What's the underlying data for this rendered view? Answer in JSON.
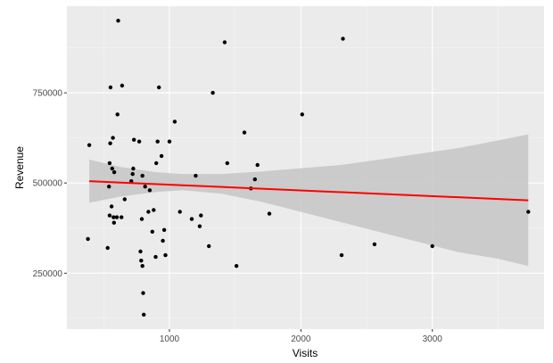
{
  "chart_data": {
    "type": "scatter",
    "xlabel": "Visits",
    "ylabel": "Revenue",
    "xlim": [
      220,
      3850
    ],
    "ylim": [
      95000,
      990000
    ],
    "x_ticks": [
      1000,
      2000,
      3000
    ],
    "x_tick_labels": [
      "1000",
      "2000",
      "3000"
    ],
    "y_ticks": [
      250000,
      500000,
      750000
    ],
    "y_tick_labels": [
      "250000",
      "500000",
      "750000"
    ],
    "grid": true,
    "background": "#ebebeb",
    "point_color": "#000000",
    "points": [
      [
        380,
        345000
      ],
      [
        390,
        605000
      ],
      [
        530,
        320000
      ],
      [
        540,
        490000
      ],
      [
        545,
        410000
      ],
      [
        545,
        555000
      ],
      [
        550,
        610000
      ],
      [
        552,
        765000
      ],
      [
        560,
        435000
      ],
      [
        565,
        540000
      ],
      [
        570,
        625000
      ],
      [
        575,
        405000
      ],
      [
        578,
        390000
      ],
      [
        580,
        530000
      ],
      [
        600,
        405000
      ],
      [
        605,
        690000
      ],
      [
        610,
        950000
      ],
      [
        635,
        405000
      ],
      [
        640,
        770000
      ],
      [
        660,
        455000
      ],
      [
        710,
        505000
      ],
      [
        720,
        525000
      ],
      [
        725,
        540000
      ],
      [
        730,
        620000
      ],
      [
        770,
        615000
      ],
      [
        780,
        310000
      ],
      [
        785,
        285000
      ],
      [
        790,
        400000
      ],
      [
        795,
        270000
      ],
      [
        795,
        520000
      ],
      [
        800,
        195000
      ],
      [
        805,
        135000
      ],
      [
        815,
        490000
      ],
      [
        840,
        420000
      ],
      [
        850,
        480000
      ],
      [
        870,
        365000
      ],
      [
        880,
        425000
      ],
      [
        895,
        295000
      ],
      [
        900,
        555000
      ],
      [
        910,
        615000
      ],
      [
        920,
        765000
      ],
      [
        940,
        575000
      ],
      [
        950,
        340000
      ],
      [
        960,
        370000
      ],
      [
        970,
        300000
      ],
      [
        1000,
        615000
      ],
      [
        1040,
        670000
      ],
      [
        1080,
        420000
      ],
      [
        1170,
        400000
      ],
      [
        1200,
        520000
      ],
      [
        1230,
        380000
      ],
      [
        1240,
        410000
      ],
      [
        1300,
        325000
      ],
      [
        1330,
        750000
      ],
      [
        1420,
        890000
      ],
      [
        1440,
        555000
      ],
      [
        1510,
        270000
      ],
      [
        1570,
        640000
      ],
      [
        1620,
        485000
      ],
      [
        1650,
        510000
      ],
      [
        1670,
        550000
      ],
      [
        1760,
        415000
      ],
      [
        2010,
        690000
      ],
      [
        2310,
        300000
      ],
      [
        2320,
        900000
      ],
      [
        2560,
        330000
      ],
      [
        3000,
        325000
      ],
      [
        3730,
        420000
      ]
    ],
    "trendline": {
      "method": "lm",
      "color": "#ff0000",
      "x": [
        390,
        3730
      ],
      "y": [
        505000,
        452000
      ],
      "band_color": "#c8c8c8",
      "band": {
        "x": [
          390,
          620,
          900,
          1100,
          1400,
          1700,
          2000,
          2300,
          2600,
          2900,
          3200,
          3500,
          3730
        ],
        "lower": [
          445000,
          462000,
          475000,
          480000,
          470000,
          448000,
          420000,
          392000,
          364000,
          336000,
          308000,
          290000,
          270000
        ],
        "upper": [
          565000,
          545000,
          530000,
          525000,
          525000,
          532000,
          541000,
          550000,
          565000,
          581000,
          597000,
          618000,
          635000
        ]
      }
    }
  }
}
